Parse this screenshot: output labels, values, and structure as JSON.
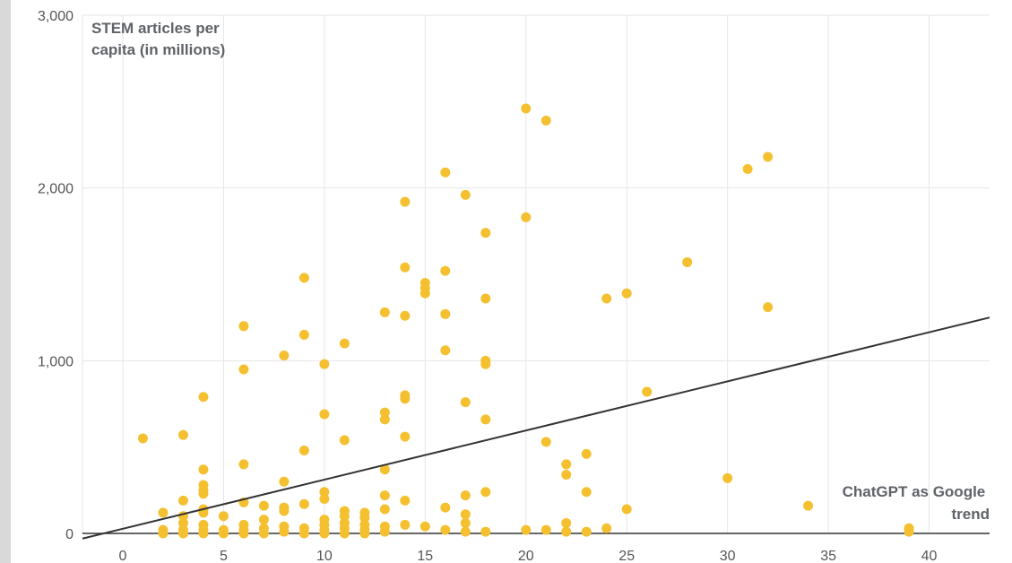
{
  "chart_data": {
    "type": "scatter",
    "ylabel": "STEM articles per capita (in millions)",
    "ylabel_lines": [
      "STEM articles per",
      "capita (in millions)"
    ],
    "xlabel": "ChatGPT as Google trend",
    "xlabel_lines": [
      "ChatGPT as Google",
      "trend"
    ],
    "x_ticks": [
      "0",
      "5",
      "10",
      "15",
      "20",
      "25",
      "30",
      "35",
      "40"
    ],
    "y_ticks": [
      "0",
      "1,000",
      "2,000",
      "3,000"
    ],
    "xlim": [
      -2,
      43
    ],
    "ylim": [
      0,
      3000
    ],
    "grid": true,
    "colors": {
      "points": "#f5c02f",
      "trendline": "#333333"
    },
    "trendline": {
      "x": [
        -2,
        43
      ],
      "y": [
        -30,
        1250
      ]
    },
    "series": [
      {
        "points": [
          [
            1,
            550
          ],
          [
            2,
            120
          ],
          [
            2,
            20
          ],
          [
            2,
            0
          ],
          [
            3,
            570
          ],
          [
            3,
            190
          ],
          [
            3,
            100
          ],
          [
            3,
            60
          ],
          [
            3,
            20
          ],
          [
            3,
            0
          ],
          [
            4,
            790
          ],
          [
            4,
            370
          ],
          [
            4,
            280
          ],
          [
            4,
            250
          ],
          [
            4,
            230
          ],
          [
            4,
            140
          ],
          [
            4,
            120
          ],
          [
            4,
            50
          ],
          [
            4,
            20
          ],
          [
            4,
            0
          ],
          [
            5,
            100
          ],
          [
            5,
            20
          ],
          [
            5,
            0
          ],
          [
            6,
            1200
          ],
          [
            6,
            950
          ],
          [
            6,
            400
          ],
          [
            6,
            180
          ],
          [
            6,
            50
          ],
          [
            6,
            20
          ],
          [
            6,
            0
          ],
          [
            7,
            160
          ],
          [
            7,
            80
          ],
          [
            7,
            30
          ],
          [
            7,
            0
          ],
          [
            8,
            1030
          ],
          [
            8,
            300
          ],
          [
            8,
            150
          ],
          [
            8,
            130
          ],
          [
            8,
            40
          ],
          [
            8,
            10
          ],
          [
            9,
            1480
          ],
          [
            9,
            1150
          ],
          [
            9,
            480
          ],
          [
            9,
            170
          ],
          [
            9,
            30
          ],
          [
            9,
            0
          ],
          [
            10,
            980
          ],
          [
            10,
            690
          ],
          [
            10,
            240
          ],
          [
            10,
            200
          ],
          [
            10,
            80
          ],
          [
            10,
            50
          ],
          [
            10,
            20
          ],
          [
            10,
            0
          ],
          [
            11,
            1100
          ],
          [
            11,
            540
          ],
          [
            11,
            130
          ],
          [
            11,
            100
          ],
          [
            11,
            60
          ],
          [
            11,
            30
          ],
          [
            11,
            0
          ],
          [
            12,
            120
          ],
          [
            12,
            90
          ],
          [
            12,
            50
          ],
          [
            12,
            20
          ],
          [
            12,
            0
          ],
          [
            13,
            1280
          ],
          [
            13,
            700
          ],
          [
            13,
            660
          ],
          [
            13,
            370
          ],
          [
            13,
            220
          ],
          [
            13,
            140
          ],
          [
            13,
            40
          ],
          [
            13,
            10
          ],
          [
            14,
            1920
          ],
          [
            14,
            1540
          ],
          [
            14,
            1260
          ],
          [
            14,
            800
          ],
          [
            14,
            780
          ],
          [
            14,
            560
          ],
          [
            14,
            190
          ],
          [
            14,
            50
          ],
          [
            15,
            1450
          ],
          [
            15,
            1420
          ],
          [
            15,
            1390
          ],
          [
            15,
            40
          ],
          [
            16,
            2090
          ],
          [
            16,
            1520
          ],
          [
            16,
            1270
          ],
          [
            16,
            1060
          ],
          [
            16,
            150
          ],
          [
            16,
            20
          ],
          [
            17,
            1960
          ],
          [
            17,
            760
          ],
          [
            17,
            220
          ],
          [
            17,
            110
          ],
          [
            17,
            60
          ],
          [
            17,
            10
          ],
          [
            18,
            1740
          ],
          [
            18,
            1360
          ],
          [
            18,
            1000
          ],
          [
            18,
            980
          ],
          [
            18,
            660
          ],
          [
            18,
            240
          ],
          [
            18,
            10
          ],
          [
            20,
            2460
          ],
          [
            20,
            1830
          ],
          [
            20,
            20
          ],
          [
            21,
            2390
          ],
          [
            21,
            530
          ],
          [
            21,
            20
          ],
          [
            22,
            400
          ],
          [
            22,
            340
          ],
          [
            22,
            60
          ],
          [
            22,
            10
          ],
          [
            23,
            460
          ],
          [
            23,
            240
          ],
          [
            23,
            10
          ],
          [
            24,
            1360
          ],
          [
            24,
            30
          ],
          [
            25,
            1390
          ],
          [
            25,
            140
          ],
          [
            26,
            820
          ],
          [
            28,
            1570
          ],
          [
            30,
            320
          ],
          [
            31,
            2110
          ],
          [
            32,
            2180
          ],
          [
            32,
            1310
          ],
          [
            34,
            160
          ],
          [
            39,
            30
          ],
          [
            39,
            10
          ]
        ]
      }
    ]
  }
}
